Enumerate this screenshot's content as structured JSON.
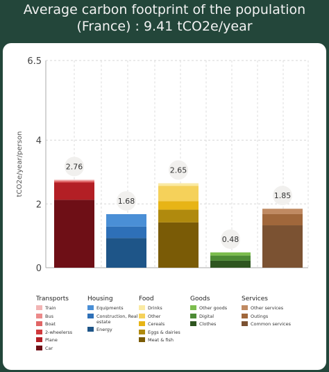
{
  "header": {
    "title_line1": "Average carbon footprint of the population",
    "title_line2": "(France) : 9.41 tCO2e/year"
  },
  "chart_data": {
    "type": "bar",
    "stacked": true,
    "ylabel": "tCO2e/year/person",
    "ylim": [
      0,
      6.5
    ],
    "yticks": [
      0,
      2,
      4,
      6.5
    ],
    "grid": true,
    "legend_position": "bottom",
    "categories": [
      "Transports",
      "Housing",
      "Food",
      "Goods",
      "Services"
    ],
    "totals": [
      "2.76",
      "1.68",
      "2.65",
      "0.48",
      "1.85"
    ],
    "groups": [
      {
        "name": "Transports",
        "segments": [
          {
            "name": "Car",
            "value": 2.13,
            "color": "#6e0f16"
          },
          {
            "name": "Plane",
            "value": 0.54,
            "color": "#b31f25"
          },
          {
            "name": "2-wheelerss",
            "value": 0.03,
            "color": "#d0393c"
          },
          {
            "name": "Boat",
            "value": 0.02,
            "color": "#e06565"
          },
          {
            "name": "Bus",
            "value": 0.02,
            "color": "#ec8a8a"
          },
          {
            "name": "Train",
            "value": 0.02,
            "color": "#f2b5b5"
          }
        ]
      },
      {
        "name": "Housing",
        "segments": [
          {
            "name": "Energy",
            "value": 0.93,
            "color": "#1e5588"
          },
          {
            "name": "Construction, Real estate",
            "value": 0.36,
            "color": "#2e70b8"
          },
          {
            "name": "Equipments",
            "value": 0.39,
            "color": "#4a8fd6"
          }
        ]
      },
      {
        "name": "Food",
        "segments": [
          {
            "name": "Meat & fish",
            "value": 1.42,
            "color": "#7a5b06"
          },
          {
            "name": "Eggs & dairies",
            "value": 0.4,
            "color": "#b08a0e"
          },
          {
            "name": "Cereals",
            "value": 0.27,
            "color": "#e7b416"
          },
          {
            "name": "Other",
            "value": 0.48,
            "color": "#f5d15a"
          },
          {
            "name": "Drinks",
            "value": 0.08,
            "color": "#faeaa3"
          }
        ]
      },
      {
        "name": "Goods",
        "segments": [
          {
            "name": "Clothes",
            "value": 0.22,
            "color": "#2e5520"
          },
          {
            "name": "Digital",
            "value": 0.16,
            "color": "#4c8a34"
          },
          {
            "name": "Other goods",
            "value": 0.1,
            "color": "#7cbd4e"
          }
        ]
      },
      {
        "name": "Services",
        "segments": [
          {
            "name": "Common services",
            "value": 1.33,
            "color": "#7b5232"
          },
          {
            "name": "Outings",
            "value": 0.35,
            "color": "#a0673b"
          },
          {
            "name": "Other services",
            "value": 0.17,
            "color": "#c08a62"
          }
        ]
      }
    ]
  },
  "legend": {
    "groups": [
      {
        "title": "Transports",
        "items": [
          {
            "label": "Train",
            "color": "#f2b5b5"
          },
          {
            "label": "Bus",
            "color": "#ec8a8a"
          },
          {
            "label": "Boat",
            "color": "#e06565"
          },
          {
            "label": "2-wheelerss",
            "color": "#d0393c"
          },
          {
            "label": "Plane",
            "color": "#b31f25"
          },
          {
            "label": "Car",
            "color": "#6e0f16"
          }
        ]
      },
      {
        "title": "Housing",
        "items": [
          {
            "label": "Equipments",
            "color": "#4a8fd6"
          },
          {
            "label": "Construction, Real estate",
            "color": "#2e70b8"
          },
          {
            "label": "Energy",
            "color": "#1e5588"
          }
        ]
      },
      {
        "title": "Food",
        "items": [
          {
            "label": "Drinks",
            "color": "#faeaa3"
          },
          {
            "label": "Other",
            "color": "#f5d15a"
          },
          {
            "label": "Cereals",
            "color": "#e7b416"
          },
          {
            "label": "Eggs & dairies",
            "color": "#b08a0e"
          },
          {
            "label": "Meat & fish",
            "color": "#7a5b06"
          }
        ]
      },
      {
        "title": "Goods",
        "items": [
          {
            "label": "Other goods",
            "color": "#7cbd4e"
          },
          {
            "label": "Digital",
            "color": "#4c8a34"
          },
          {
            "label": "Clothes",
            "color": "#2e5520"
          }
        ]
      },
      {
        "title": "Services",
        "items": [
          {
            "label": "Other services",
            "color": "#c08a62"
          },
          {
            "label": "Outings",
            "color": "#a0673b"
          },
          {
            "label": "Common services",
            "color": "#7b5232"
          }
        ]
      }
    ]
  }
}
